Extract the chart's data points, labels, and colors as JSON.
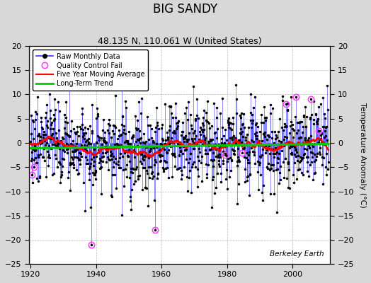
{
  "title": "BIG SANDY",
  "subtitle": "48.135 N, 110.061 W (United States)",
  "ylabel": "Temperature Anomaly (°C)",
  "credit": "Berkeley Earth",
  "year_start": 1920,
  "year_end": 2011,
  "ylim": [
    -25,
    20
  ],
  "yticks": [
    -25,
    -20,
    -15,
    -10,
    -5,
    0,
    5,
    10,
    15,
    20
  ],
  "xticks": [
    1920,
    1940,
    1960,
    1980,
    2000
  ],
  "raw_color": "#3333ff",
  "moving_avg_color": "#ff0000",
  "trend_color": "#00cc00",
  "qc_color": "#ff44ff",
  "plot_bg": "#ffffff",
  "fig_bg": "#d8d8d8",
  "legend_bg": "#ffffff",
  "title_fontsize": 12,
  "subtitle_fontsize": 9,
  "label_fontsize": 8,
  "tick_fontsize": 8
}
